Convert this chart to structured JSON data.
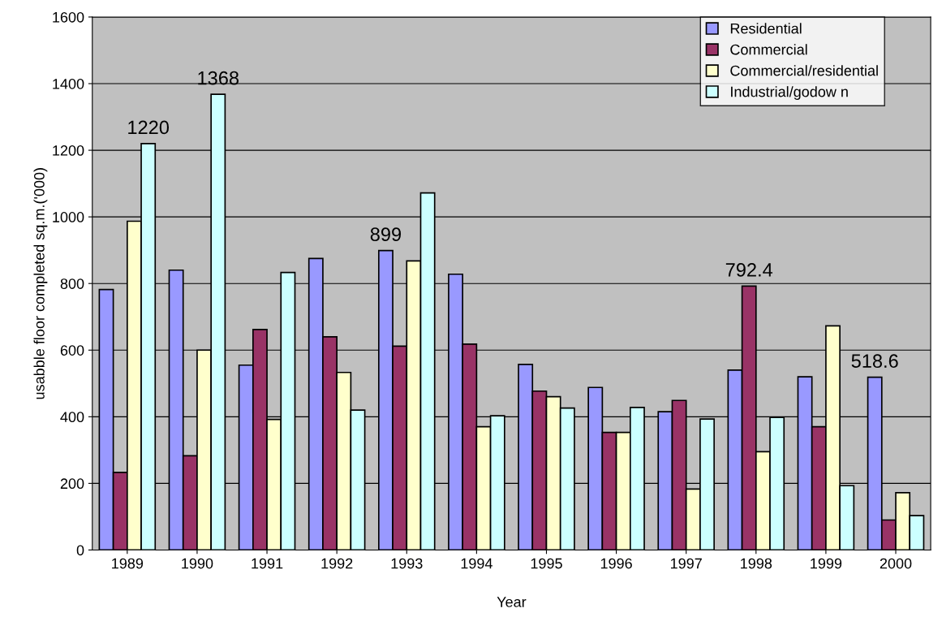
{
  "chart_data": {
    "type": "bar",
    "xlabel": "Year",
    "ylabel": "usabble floor completed sq.m.('000)",
    "categories": [
      "1989",
      "1990",
      "1991",
      "1992",
      "1993",
      "1994",
      "1995",
      "1996",
      "1997",
      "1998",
      "1999",
      "2000"
    ],
    "series": [
      {
        "name": "Residential",
        "color": "#9999ff",
        "values": [
          782,
          840,
          555,
          875,
          899,
          828,
          557,
          488,
          415,
          540,
          520,
          518.6
        ],
        "value_labels": [
          null,
          null,
          null,
          null,
          "899",
          null,
          null,
          null,
          null,
          null,
          null,
          "518.6"
        ]
      },
      {
        "name": "Commercial",
        "color": "#993366",
        "values": [
          233,
          283,
          662,
          640,
          612,
          618,
          477,
          353,
          449,
          792.4,
          370,
          90
        ],
        "value_labels": [
          null,
          null,
          null,
          null,
          null,
          null,
          null,
          null,
          null,
          "792.4",
          null,
          null
        ]
      },
      {
        "name": "Commercial/residential",
        "color": "#ffffcc",
        "values": [
          987,
          600,
          392,
          533,
          868,
          370,
          460,
          353,
          183,
          295,
          673,
          172
        ]
      },
      {
        "name": "Industrial/godow n",
        "color": "#ccffff",
        "values": [
          1220,
          1368,
          833,
          420,
          1072,
          403,
          426,
          428,
          393,
          398,
          193,
          103
        ],
        "value_labels": [
          "1220",
          "1368",
          null,
          null,
          null,
          null,
          null,
          null,
          null,
          null,
          null,
          null
        ]
      }
    ],
    "ylim": [
      0,
      1600
    ],
    "yticks": [
      0,
      200,
      400,
      600,
      800,
      1000,
      1200,
      1400,
      1600
    ],
    "grid": "y",
    "legend": "top right"
  }
}
